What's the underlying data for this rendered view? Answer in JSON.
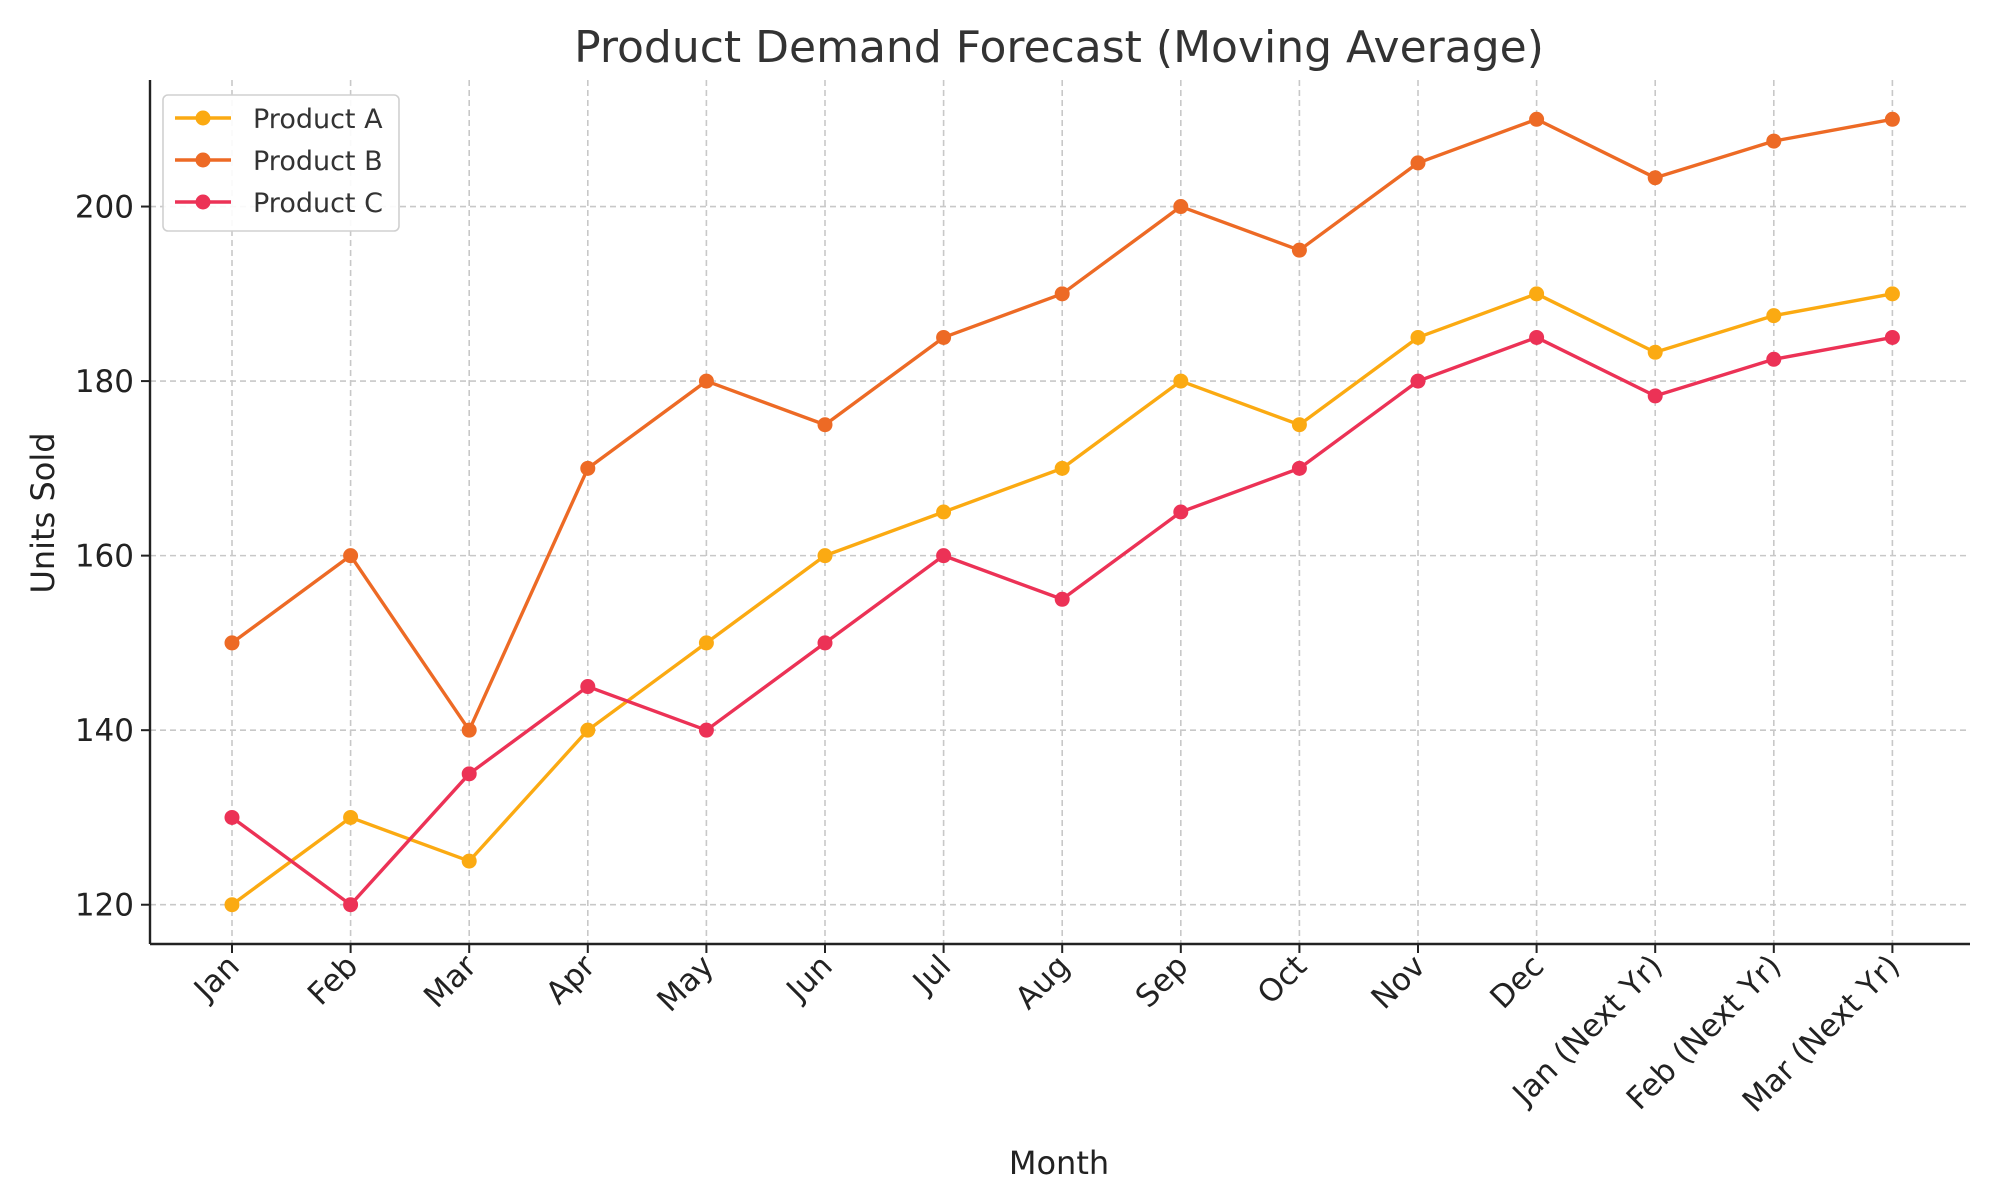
{
  "chart_data": {
    "type": "line",
    "title": "Product Demand Forecast (Moving Average)",
    "xlabel": "Month",
    "ylabel": "Units Sold",
    "categories": [
      "Jan",
      "Feb",
      "Mar",
      "Apr",
      "May",
      "Jun",
      "Jul",
      "Aug",
      "Sep",
      "Oct",
      "Nov",
      "Dec",
      "Jan (Next Yr)",
      "Feb (Next Yr)",
      "Mar (Next Yr)"
    ],
    "ylim": [
      115.5,
      214.5
    ],
    "yticks": [
      120,
      140,
      160,
      180,
      200
    ],
    "grid": true,
    "legend_position": "top-left",
    "series": [
      {
        "name": "Product A",
        "color": "#FBAA12",
        "values": [
          120,
          130,
          125,
          140,
          150,
          160,
          165,
          170,
          180,
          175,
          185,
          190,
          183.3,
          187.5,
          190
        ]
      },
      {
        "name": "Product B",
        "color": "#ED6A25",
        "values": [
          150,
          160,
          140,
          170,
          180,
          175,
          185,
          190,
          200,
          195,
          205,
          210,
          203.3,
          207.5,
          210
        ]
      },
      {
        "name": "Product C",
        "color": "#EC3256",
        "values": [
          130,
          120,
          135,
          145,
          140,
          150,
          160,
          155,
          165,
          170,
          180,
          185,
          178.3,
          182.5,
          185
        ]
      }
    ]
  }
}
